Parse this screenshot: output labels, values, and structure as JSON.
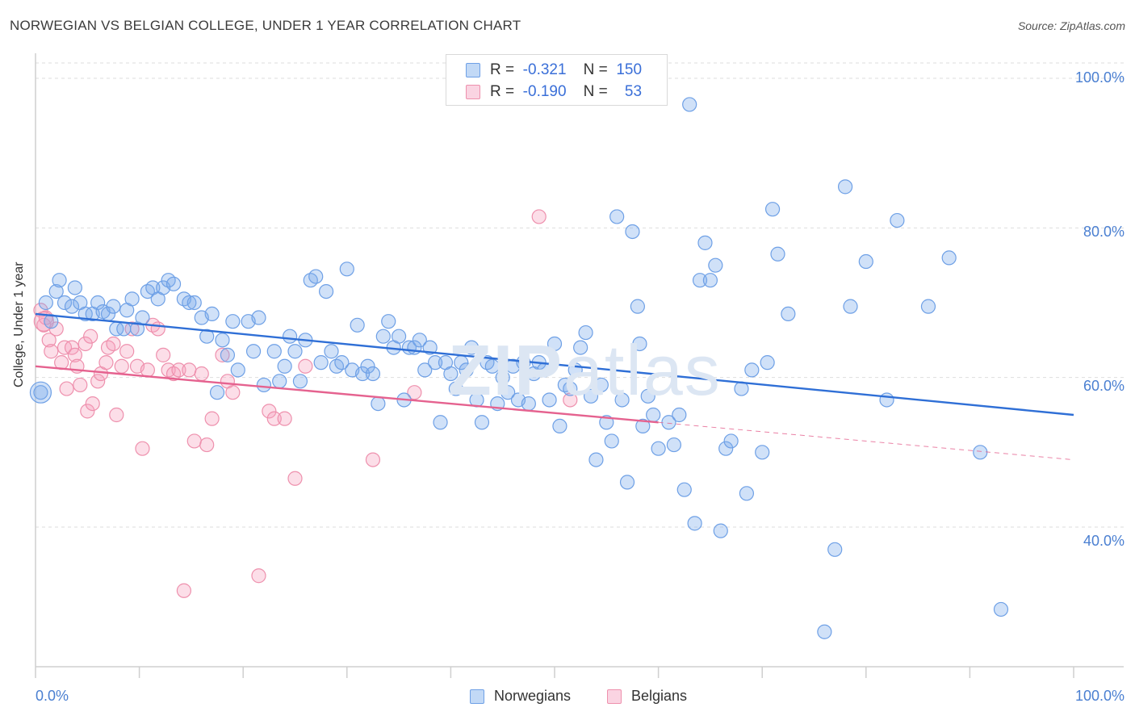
{
  "title": "NORWEGIAN VS BELGIAN COLLEGE, UNDER 1 YEAR CORRELATION CHART",
  "source": "Source: ZipAtlas.com",
  "watermark": {
    "bold": "ZIP",
    "light": "atlas"
  },
  "colors": {
    "blue": "#6ea0e6",
    "blue_fill": "rgba(120,170,235,0.35)",
    "blue_line": "#2f6fd6",
    "pink": "#ee90ad",
    "pink_fill": "rgba(245,160,190,0.35)",
    "pink_line": "#e5628f",
    "grid": "#dedede",
    "tick_text": "#4a7fd1"
  },
  "legend": {
    "rows": [
      {
        "r_label": "R =",
        "r_value": "-0.321",
        "n_label": "N =",
        "n_value": "150"
      },
      {
        "r_label": "R =",
        "r_value": "-0.190",
        "n_label": "N =",
        "n_value": "53"
      }
    ]
  },
  "bottom_legend": [
    "Norwegians",
    "Belgians"
  ],
  "chart_data": {
    "type": "scatter",
    "title": "NORWEGIAN VS BELGIAN COLLEGE, UNDER 1 YEAR CORRELATION CHART",
    "xlabel": "",
    "ylabel": "College, Under 1 year",
    "xlim": [
      0,
      100
    ],
    "ylim": [
      20,
      105
    ],
    "x_tick_labels": [
      "0.0%",
      "100.0%"
    ],
    "y_ticks": [
      40,
      60,
      80,
      100
    ],
    "y_tick_labels": [
      "40.0%",
      "60.0%",
      "80.0%",
      "100.0%"
    ],
    "grid": true,
    "legend_position": "top-center",
    "series": [
      {
        "name": "Norwegians",
        "r": -0.321,
        "n": 150,
        "trend": {
          "x": [
            0,
            100
          ],
          "y": [
            68.5,
            55.0
          ]
        },
        "points": [
          [
            0.5,
            58.0
          ],
          [
            1.0,
            70.0
          ],
          [
            1.5,
            67.5
          ],
          [
            2.0,
            71.5
          ],
          [
            2.3,
            73.0
          ],
          [
            2.8,
            70.0
          ],
          [
            3.5,
            69.5
          ],
          [
            3.8,
            72.0
          ],
          [
            4.3,
            70.0
          ],
          [
            4.8,
            68.5
          ],
          [
            5.5,
            68.5
          ],
          [
            6.0,
            70.0
          ],
          [
            6.5,
            68.8
          ],
          [
            7.0,
            68.5
          ],
          [
            7.5,
            69.5
          ],
          [
            7.8,
            66.5
          ],
          [
            8.5,
            66.5
          ],
          [
            8.8,
            69.0
          ],
          [
            9.3,
            70.5
          ],
          [
            9.8,
            66.5
          ],
          [
            10.3,
            68.0
          ],
          [
            10.8,
            71.5
          ],
          [
            11.3,
            72.0
          ],
          [
            11.8,
            70.5
          ],
          [
            12.3,
            72.0
          ],
          [
            12.8,
            73.0
          ],
          [
            13.3,
            72.5
          ],
          [
            14.3,
            70.5
          ],
          [
            14.8,
            70.0
          ],
          [
            15.3,
            70.0
          ],
          [
            16.0,
            68.0
          ],
          [
            16.5,
            65.5
          ],
          [
            17.0,
            68.5
          ],
          [
            17.5,
            58.0
          ],
          [
            18.0,
            65.0
          ],
          [
            18.5,
            63.0
          ],
          [
            19.0,
            67.5
          ],
          [
            19.5,
            61.0
          ],
          [
            20.5,
            67.5
          ],
          [
            21.0,
            63.5
          ],
          [
            21.5,
            68.0
          ],
          [
            22.0,
            59.0
          ],
          [
            23.0,
            63.5
          ],
          [
            23.5,
            59.5
          ],
          [
            24.0,
            61.5
          ],
          [
            24.5,
            65.5
          ],
          [
            25.0,
            63.5
          ],
          [
            25.5,
            59.5
          ],
          [
            26.0,
            65.0
          ],
          [
            26.5,
            73.0
          ],
          [
            27.0,
            73.5
          ],
          [
            27.5,
            62.0
          ],
          [
            28.0,
            71.5
          ],
          [
            28.5,
            63.5
          ],
          [
            29.0,
            61.5
          ],
          [
            29.5,
            62.0
          ],
          [
            30.0,
            74.5
          ],
          [
            30.5,
            61.0
          ],
          [
            31.0,
            67.0
          ],
          [
            31.5,
            60.5
          ],
          [
            32.0,
            61.5
          ],
          [
            32.5,
            60.5
          ],
          [
            33.0,
            56.5
          ],
          [
            33.5,
            65.5
          ],
          [
            34.0,
            67.5
          ],
          [
            34.5,
            64.0
          ],
          [
            35.0,
            65.5
          ],
          [
            35.5,
            57.0
          ],
          [
            36.0,
            64.0
          ],
          [
            36.5,
            64.0
          ],
          [
            37.0,
            65.0
          ],
          [
            37.5,
            61.0
          ],
          [
            38.0,
            64.0
          ],
          [
            38.5,
            62.0
          ],
          [
            39.0,
            54.0
          ],
          [
            39.5,
            62.0
          ],
          [
            40.0,
            60.5
          ],
          [
            40.5,
            58.5
          ],
          [
            41.0,
            62.0
          ],
          [
            41.5,
            61.0
          ],
          [
            42.0,
            64.0
          ],
          [
            42.5,
            57.0
          ],
          [
            43.0,
            54.0
          ],
          [
            43.5,
            62.0
          ],
          [
            44.0,
            61.5
          ],
          [
            44.5,
            56.5
          ],
          [
            45.0,
            60.0
          ],
          [
            45.5,
            58.0
          ],
          [
            46.0,
            61.5
          ],
          [
            46.5,
            57.0
          ],
          [
            47.0,
            62.0
          ],
          [
            47.5,
            56.5
          ],
          [
            48.0,
            60.5
          ],
          [
            48.5,
            62.0
          ],
          [
            49.0,
            61.0
          ],
          [
            49.5,
            57.0
          ],
          [
            50.0,
            64.5
          ],
          [
            50.5,
            53.5
          ],
          [
            51.0,
            59.0
          ],
          [
            51.5,
            58.5
          ],
          [
            52.0,
            61.0
          ],
          [
            52.5,
            64.0
          ],
          [
            53.0,
            66.0
          ],
          [
            53.5,
            57.5
          ],
          [
            54.0,
            49.0
          ],
          [
            54.5,
            59.0
          ],
          [
            55.0,
            54.0
          ],
          [
            55.5,
            51.5
          ],
          [
            56.0,
            81.5
          ],
          [
            56.5,
            57.0
          ],
          [
            57.0,
            46.0
          ],
          [
            57.5,
            79.5
          ],
          [
            58.0,
            69.5
          ],
          [
            58.5,
            53.5
          ],
          [
            59.0,
            57.5
          ],
          [
            59.5,
            55.0
          ],
          [
            60.0,
            50.5
          ],
          [
            61.0,
            54.0
          ],
          [
            61.5,
            51.0
          ],
          [
            62.0,
            55.0
          ],
          [
            62.5,
            45.0
          ],
          [
            63.0,
            96.5
          ],
          [
            63.5,
            40.5
          ],
          [
            64.0,
            73.0
          ],
          [
            64.5,
            78.0
          ],
          [
            65.0,
            73.0
          ],
          [
            65.5,
            75.0
          ],
          [
            66.0,
            39.5
          ],
          [
            66.5,
            50.5
          ],
          [
            67.0,
            51.5
          ],
          [
            68.0,
            58.5
          ],
          [
            68.5,
            44.5
          ],
          [
            69.0,
            61.0
          ],
          [
            70.0,
            50.0
          ],
          [
            70.5,
            62.0
          ],
          [
            71.0,
            82.5
          ],
          [
            71.5,
            76.5
          ],
          [
            72.5,
            68.5
          ],
          [
            76.0,
            26.0
          ],
          [
            77.0,
            37.0
          ],
          [
            78.0,
            85.5
          ],
          [
            78.5,
            69.5
          ],
          [
            80.0,
            75.5
          ],
          [
            82.0,
            57.0
          ],
          [
            83.0,
            81.0
          ],
          [
            86.0,
            69.5
          ],
          [
            88.0,
            76.0
          ],
          [
            91.0,
            50.0
          ],
          [
            93.0,
            29.0
          ],
          [
            58.2,
            64.5
          ]
        ]
      },
      {
        "name": "Belgians",
        "r": -0.19,
        "n": 53,
        "trend": {
          "x": [
            0,
            60
          ],
          "y": [
            61.5,
            54.0
          ]
        },
        "trend_dashed": {
          "x": [
            60,
            100
          ],
          "y": [
            54.0,
            49.0
          ]
        },
        "points": [
          [
            0.5,
            69.0
          ],
          [
            0.8,
            67.0
          ],
          [
            1.0,
            68.0
          ],
          [
            1.3,
            65.0
          ],
          [
            1.5,
            63.5
          ],
          [
            2.0,
            66.5
          ],
          [
            2.5,
            62.0
          ],
          [
            2.8,
            64.0
          ],
          [
            3.0,
            58.5
          ],
          [
            3.5,
            64.0
          ],
          [
            3.8,
            63.0
          ],
          [
            4.0,
            61.5
          ],
          [
            4.3,
            59.0
          ],
          [
            4.8,
            64.5
          ],
          [
            5.0,
            55.5
          ],
          [
            5.3,
            65.5
          ],
          [
            5.5,
            56.5
          ],
          [
            6.0,
            59.5
          ],
          [
            6.3,
            60.5
          ],
          [
            6.8,
            62.0
          ],
          [
            7.0,
            64.0
          ],
          [
            7.5,
            64.5
          ],
          [
            7.8,
            55.0
          ],
          [
            8.3,
            61.5
          ],
          [
            8.8,
            63.5
          ],
          [
            9.3,
            66.5
          ],
          [
            9.8,
            61.5
          ],
          [
            10.3,
            50.5
          ],
          [
            10.8,
            61.0
          ],
          [
            11.3,
            67.0
          ],
          [
            11.8,
            66.5
          ],
          [
            12.3,
            63.0
          ],
          [
            12.8,
            61.0
          ],
          [
            13.3,
            60.5
          ],
          [
            13.8,
            61.0
          ],
          [
            14.3,
            31.5
          ],
          [
            14.8,
            61.0
          ],
          [
            15.3,
            51.5
          ],
          [
            16.0,
            60.5
          ],
          [
            16.5,
            51.0
          ],
          [
            17.0,
            54.5
          ],
          [
            18.0,
            63.0
          ],
          [
            18.5,
            59.5
          ],
          [
            19.0,
            58.0
          ],
          [
            21.5,
            33.5
          ],
          [
            22.5,
            55.5
          ],
          [
            23.0,
            54.5
          ],
          [
            24.0,
            54.5
          ],
          [
            25.0,
            46.5
          ],
          [
            26.0,
            61.5
          ],
          [
            32.5,
            49.0
          ],
          [
            36.5,
            58.0
          ],
          [
            51.5,
            57.0
          ]
        ],
        "extra_points": [
          [
            48.5,
            81.5
          ]
        ]
      }
    ]
  }
}
